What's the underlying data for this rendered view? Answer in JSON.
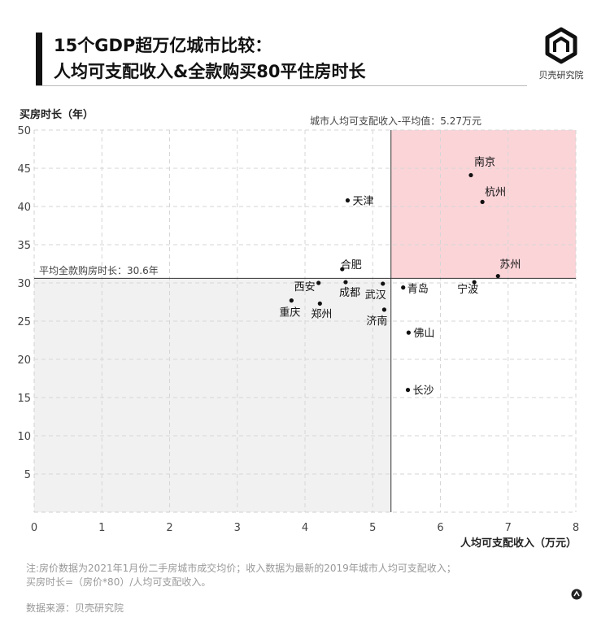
{
  "header": {
    "title_line1": "15个GDP超万亿城市比较：",
    "title_line2": "人均可支配收入&全款购买80平住房时长",
    "logo_text": "贝壳研究院"
  },
  "chart_data": {
    "type": "scatter",
    "ylabel": "买房时长（年）",
    "xlabel": "人均可支配收入（万元）",
    "xlim": [
      0,
      8
    ],
    "ylim": [
      0,
      50
    ],
    "xticks": [
      "0",
      "1",
      "2",
      "3",
      "4",
      "5",
      "6",
      "7",
      "8"
    ],
    "yticks": [
      "5",
      "10",
      "15",
      "20",
      "25",
      "30",
      "35",
      "40",
      "45",
      "50"
    ],
    "grid": true,
    "avg_x": 5.27,
    "avg_y": 30.6,
    "avg_x_label": "城市人均可支配收入-平均值：5.27万元",
    "avg_y_label": "平均全款购房时长：30.6年",
    "points": [
      {
        "name": "南京",
        "x": 6.45,
        "y": 44.1
      },
      {
        "name": "杭州",
        "x": 6.62,
        "y": 40.6
      },
      {
        "name": "天津",
        "x": 4.63,
        "y": 40.8
      },
      {
        "name": "苏州",
        "x": 6.85,
        "y": 30.9
      },
      {
        "name": "合肥",
        "x": 4.55,
        "y": 31.8
      },
      {
        "name": "西安",
        "x": 4.2,
        "y": 30.0
      },
      {
        "name": "成都",
        "x": 4.6,
        "y": 30.1
      },
      {
        "name": "武汉",
        "x": 5.15,
        "y": 29.9
      },
      {
        "name": "青岛",
        "x": 5.45,
        "y": 29.4
      },
      {
        "name": "宁波",
        "x": 6.5,
        "y": 30.1
      },
      {
        "name": "重庆",
        "x": 3.8,
        "y": 27.7
      },
      {
        "name": "郑州",
        "x": 4.22,
        "y": 27.3
      },
      {
        "name": "济南",
        "x": 5.17,
        "y": 26.5
      },
      {
        "name": "佛山",
        "x": 5.53,
        "y": 23.5
      },
      {
        "name": "长沙",
        "x": 5.52,
        "y": 16.0
      }
    ],
    "colors": {
      "high_quadrant": "#fbd4d8",
      "low_quadrant": "#f2f1f1",
      "point": "#111111"
    }
  },
  "footer": {
    "note_line1": "注:房价数据为2021年1月份二手房城市成交均价；收入数据为最新的2019年城市人均可支配收入；",
    "note_line2": "买房时长=（房价*80）/人均可支配收入。",
    "source": "数据来源：贝壳研究院"
  }
}
